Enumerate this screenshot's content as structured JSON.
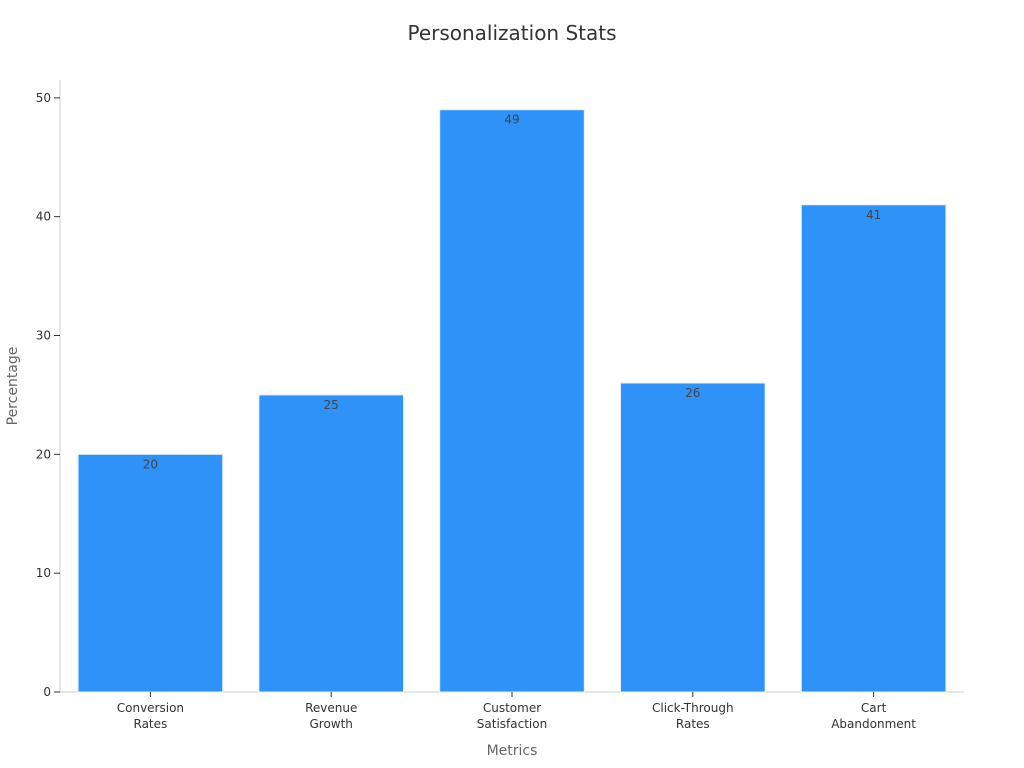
{
  "chart_data": {
    "type": "bar",
    "title": "Personalization Stats",
    "xlabel": "Metrics",
    "ylabel": "Percentage",
    "categories": [
      [
        "Conversion",
        "Rates"
      ],
      [
        "Revenue",
        "Growth"
      ],
      [
        "Customer",
        "Satisfaction"
      ],
      [
        "Click-Through",
        "Rates"
      ],
      [
        "Cart",
        "Abandonment"
      ]
    ],
    "values": [
      20,
      25,
      49,
      26,
      41
    ],
    "ylim": [
      0,
      51.5
    ],
    "yticks": [
      0,
      10,
      20,
      30,
      40,
      50
    ],
    "bar_color": "#2f92f8",
    "grid": false,
    "legend": "none"
  }
}
